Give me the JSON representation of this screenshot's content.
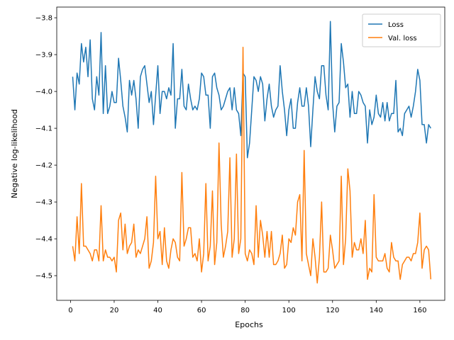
{
  "chart_data": {
    "type": "line",
    "xlabel": "Epochs",
    "ylabel": "Negative log-likelihood",
    "x": [
      1,
      2,
      3,
      4,
      5,
      6,
      7,
      8,
      9,
      10,
      11,
      12,
      13,
      14,
      15,
      16,
      17,
      18,
      19,
      20,
      21,
      22,
      23,
      24,
      25,
      26,
      27,
      28,
      29,
      30,
      31,
      32,
      33,
      34,
      35,
      36,
      37,
      38,
      39,
      40,
      41,
      42,
      43,
      44,
      45,
      46,
      47,
      48,
      49,
      50,
      51,
      52,
      53,
      54,
      55,
      56,
      57,
      58,
      59,
      60,
      61,
      62,
      63,
      64,
      65,
      66,
      67,
      68,
      69,
      70,
      71,
      72,
      73,
      74,
      75,
      76,
      77,
      78,
      79,
      80,
      81,
      82,
      83,
      84,
      85,
      86,
      87,
      88,
      89,
      90,
      91,
      92,
      93,
      94,
      95,
      96,
      97,
      98,
      99,
      100,
      101,
      102,
      103,
      104,
      105,
      106,
      107,
      108,
      109,
      110,
      111,
      112,
      113,
      114,
      115,
      116,
      117,
      118,
      119,
      120,
      121,
      122,
      123,
      124,
      125,
      126,
      127,
      128,
      129,
      130,
      131,
      132,
      133,
      134,
      135,
      136,
      137,
      138,
      139,
      140,
      141,
      142,
      143,
      144,
      145,
      146,
      147,
      148,
      149,
      150,
      151,
      152,
      153,
      154,
      155,
      156,
      157,
      158,
      159,
      160,
      161,
      162,
      163,
      164,
      165
    ],
    "series": [
      {
        "name": "Loss",
        "color": "#1f77b4",
        "values": [
          -3.96,
          -4.05,
          -3.95,
          -3.98,
          -3.87,
          -3.92,
          -3.88,
          -3.96,
          -3.86,
          -4.02,
          -4.05,
          -3.96,
          -4.01,
          -3.84,
          -4.06,
          -3.93,
          -4.06,
          -4.04,
          -4.0,
          -4.03,
          -4.03,
          -3.91,
          -3.97,
          -4.04,
          -4.07,
          -4.11,
          -3.97,
          -4.01,
          -3.97,
          -4.02,
          -4.1,
          -3.96,
          -3.94,
          -3.93,
          -3.98,
          -4.03,
          -4.0,
          -4.09,
          -4.01,
          -3.93,
          -4.06,
          -4.0,
          -4.0,
          -4.02,
          -3.99,
          -4.01,
          -3.87,
          -4.1,
          -4.02,
          -4.02,
          -3.94,
          -4.04,
          -4.05,
          -3.98,
          -4.02,
          -4.05,
          -4.04,
          -4.05,
          -4.02,
          -3.95,
          -3.96,
          -4.01,
          -4.01,
          -4.1,
          -3.96,
          -3.95,
          -3.99,
          -4.01,
          -4.05,
          -4.04,
          -4.02,
          -4.0,
          -3.99,
          -4.05,
          -3.99,
          -4.05,
          -4.06,
          -4.12,
          -3.95,
          -3.96,
          -4.18,
          -4.14,
          -4.05,
          -3.96,
          -3.97,
          -4.0,
          -3.96,
          -3.98,
          -4.08,
          -4.02,
          -3.98,
          -4.04,
          -4.07,
          -4.05,
          -4.04,
          -3.93,
          -4.0,
          -4.05,
          -4.12,
          -4.05,
          -4.02,
          -4.1,
          -4.1,
          -4.03,
          -3.99,
          -4.04,
          -4.04,
          -3.99,
          -4.04,
          -4.15,
          -4.05,
          -3.96,
          -4.0,
          -4.02,
          -3.93,
          -3.93,
          -4.01,
          -4.05,
          -3.81,
          -4.03,
          -4.11,
          -4.04,
          -4.03,
          -3.87,
          -3.92,
          -3.99,
          -3.98,
          -4.07,
          -4.0,
          -4.06,
          -4.06,
          -4.0,
          -4.01,
          -4.03,
          -4.04,
          -4.14,
          -4.05,
          -4.09,
          -4.07,
          -4.01,
          -4.06,
          -4.07,
          -4.03,
          -4.08,
          -4.03,
          -4.08,
          -4.06,
          -4.06,
          -3.97,
          -4.11,
          -4.1,
          -4.12,
          -4.06,
          -4.05,
          -4.04,
          -4.07,
          -4.04,
          -4.0,
          -3.94,
          -3.97,
          -4.09,
          -4.09,
          -4.14,
          -4.09,
          -4.1
        ]
      },
      {
        "name": "Val. loss",
        "color": "#ff7f0e",
        "values": [
          -4.42,
          -4.46,
          -4.34,
          -4.44,
          -4.25,
          -4.42,
          -4.42,
          -4.43,
          -4.44,
          -4.46,
          -4.43,
          -4.43,
          -4.46,
          -4.31,
          -4.46,
          -4.43,
          -4.45,
          -4.45,
          -4.46,
          -4.45,
          -4.49,
          -4.35,
          -4.33,
          -4.43,
          -4.36,
          -4.44,
          -4.42,
          -4.41,
          -4.36,
          -4.45,
          -4.43,
          -4.44,
          -4.42,
          -4.4,
          -4.34,
          -4.48,
          -4.46,
          -4.41,
          -4.23,
          -4.4,
          -4.38,
          -4.47,
          -4.37,
          -4.46,
          -4.48,
          -4.43,
          -4.4,
          -4.41,
          -4.45,
          -4.46,
          -4.22,
          -4.42,
          -4.4,
          -4.37,
          -4.37,
          -4.45,
          -4.44,
          -4.46,
          -4.4,
          -4.49,
          -4.44,
          -4.25,
          -4.46,
          -4.42,
          -4.27,
          -4.47,
          -4.41,
          -4.14,
          -4.36,
          -4.45,
          -4.42,
          -4.38,
          -4.18,
          -4.45,
          -4.4,
          -4.17,
          -4.44,
          -4.4,
          -3.88,
          -4.44,
          -4.46,
          -4.43,
          -4.44,
          -4.47,
          -4.31,
          -4.45,
          -4.35,
          -4.39,
          -4.45,
          -4.38,
          -4.45,
          -4.38,
          -4.47,
          -4.47,
          -4.46,
          -4.44,
          -4.39,
          -4.48,
          -4.47,
          -4.4,
          -4.41,
          -4.37,
          -4.39,
          -4.3,
          -4.28,
          -4.46,
          -4.16,
          -4.44,
          -4.47,
          -4.5,
          -4.4,
          -4.45,
          -4.52,
          -4.45,
          -4.3,
          -4.49,
          -4.49,
          -4.48,
          -4.39,
          -4.43,
          -4.48,
          -4.47,
          -4.46,
          -4.23,
          -4.47,
          -4.4,
          -4.21,
          -4.27,
          -4.45,
          -4.41,
          -4.43,
          -4.43,
          -4.4,
          -4.44,
          -4.35,
          -4.51,
          -4.48,
          -4.49,
          -4.28,
          -4.45,
          -4.46,
          -4.46,
          -4.46,
          -4.44,
          -4.48,
          -4.49,
          -4.41,
          -4.45,
          -4.46,
          -4.46,
          -4.51,
          -4.47,
          -4.46,
          -4.45,
          -4.45,
          -4.46,
          -4.44,
          -4.44,
          -4.41,
          -4.33,
          -4.48,
          -4.43,
          -4.42,
          -4.43,
          -4.51
        ]
      }
    ],
    "xlim": [
      -6.3,
      171.4
    ],
    "xticks": [
      0,
      20,
      40,
      60,
      80,
      100,
      120,
      140,
      160
    ],
    "ylim": [
      -4.567,
      -3.771
    ],
    "yticks": [
      {
        "value": -4.5,
        "label": "−4.5"
      },
      {
        "value": -4.4,
        "label": "−4.4"
      },
      {
        "value": -4.3,
        "label": "−4.3"
      },
      {
        "value": -4.2,
        "label": "−4.2"
      },
      {
        "value": -4.1,
        "label": "−4.1"
      },
      {
        "value": -4.0,
        "label": "−4.0"
      },
      {
        "value": -3.9,
        "label": "−3.9"
      },
      {
        "value": -3.8,
        "label": "−3.8"
      }
    ],
    "grid": false,
    "legend": "upper right"
  }
}
